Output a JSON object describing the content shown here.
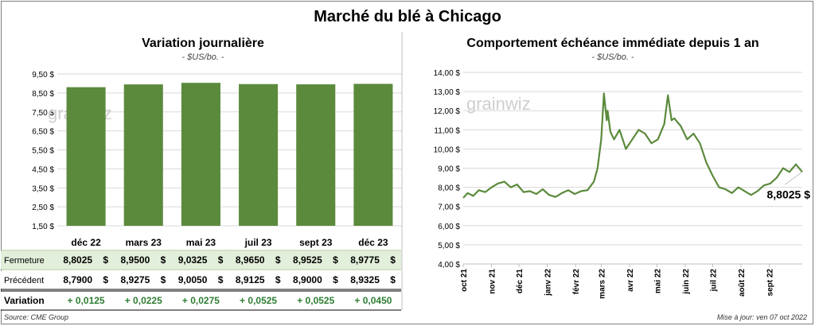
{
  "header": {
    "title": "Marché du blé à Chicago"
  },
  "left_panel": {
    "title": "Variation  journalière",
    "subtitle": "- $US/bo. -",
    "watermark": "grainwiz"
  },
  "right_panel": {
    "title": "Comportement  échéance immédiate depuis 1 an",
    "subtitle": "- $US/bo. -",
    "watermark": "grainwiz",
    "last_value_label": "8,8025 $"
  },
  "table": {
    "rows": [
      {
        "label": "Fermeture",
        "values": [
          "8,8025",
          "8,9500",
          "9,0325",
          "8,9650",
          "8,9525",
          "8,9775"
        ],
        "unit": "$",
        "bg": "#e2efda"
      },
      {
        "label": "Précédent",
        "values": [
          "8,7900",
          "8,9275",
          "9,0050",
          "8,9125",
          "8,9000",
          "8,9325"
        ],
        "unit": "$",
        "bg": "#ffffff"
      },
      {
        "label": "Variation",
        "values": [
          "+ 0,0125",
          "+ 0,0225",
          "+ 0,0275",
          "+ 0,0525",
          "+ 0,0525",
          "+ 0,0450"
        ],
        "unit": "",
        "bg": "#ffffff",
        "color": "#2e7d32"
      }
    ]
  },
  "footer": {
    "source": "Source: CME Group",
    "updated": "Mise à jour: ven 07 oct 2022"
  },
  "colors": {
    "bar": "#5b8a3c",
    "line": "#5b8a3c",
    "variation": "#2e7d32",
    "grid": "#d9d9d9",
    "highlight_row": "#e2efda"
  },
  "chart_data": [
    {
      "type": "bar",
      "title": "Variation  journalière",
      "subtitle": "- $US/bo. -",
      "categories": [
        "déc 22",
        "mars 23",
        "mai 23",
        "juil 23",
        "sept 23",
        "déc 23"
      ],
      "values": [
        8.8025,
        8.95,
        9.0325,
        8.965,
        8.9525,
        8.9775
      ],
      "ylim": [
        1.5,
        9.5
      ],
      "yticks": [
        1.5,
        2.5,
        3.5,
        4.5,
        5.5,
        6.5,
        7.5,
        8.5,
        9.5
      ],
      "ytick_labels": [
        "1,50 $",
        "2,50 $",
        "3,50 $",
        "4,50 $",
        "5,50 $",
        "6,50 $",
        "7,50 $",
        "8,50 $",
        "9,50 $"
      ],
      "grid": true
    },
    {
      "type": "line",
      "title": "Comportement  échéance immédiate depuis 1 an",
      "subtitle": "- $US/bo. -",
      "ylim": [
        4.0,
        14.0
      ],
      "yticks": [
        4,
        5,
        6,
        7,
        8,
        9,
        10,
        11,
        12,
        13,
        14
      ],
      "ytick_labels": [
        "4,00 $",
        "5,00 $",
        "6,00 $",
        "7,00 $",
        "8,00 $",
        "9,00 $",
        "10,00 $",
        "11,00 $",
        "12,00 $",
        "13,00 $",
        "14,00 $"
      ],
      "xlim": [
        "2021-10-01",
        "2022-10-07"
      ],
      "xtick_labels": [
        "oct 21",
        "nov 21",
        "déc 21",
        "janv 22",
        "févr 22",
        "mars 22",
        "avr 22",
        "mai 22",
        "juin 22",
        "juil 22",
        "août 22",
        "sept 22"
      ],
      "xticks": [
        "2021-10-01",
        "2021-11-01",
        "2021-12-01",
        "2022-01-01",
        "2022-02-01",
        "2022-03-01",
        "2022-04-01",
        "2022-05-01",
        "2022-06-01",
        "2022-07-01",
        "2022-08-01",
        "2022-09-01"
      ],
      "grid": true,
      "series": [
        {
          "x": [
            "2021-10-01",
            "2021-10-06",
            "2021-10-12",
            "2021-10-18",
            "2021-10-25",
            "2021-11-01",
            "2021-11-08",
            "2021-11-15",
            "2021-11-22",
            "2021-11-29",
            "2021-12-06",
            "2021-12-13",
            "2021-12-20",
            "2021-12-27",
            "2022-01-03",
            "2022-01-10",
            "2022-01-17",
            "2022-01-24",
            "2022-01-31",
            "2022-02-07",
            "2022-02-14",
            "2022-02-21",
            "2022-02-25",
            "2022-03-01",
            "2022-03-04",
            "2022-03-07",
            "2022-03-08",
            "2022-03-11",
            "2022-03-15",
            "2022-03-21",
            "2022-03-28",
            "2022-04-04",
            "2022-04-11",
            "2022-04-18",
            "2022-04-25",
            "2022-05-02",
            "2022-05-09",
            "2022-05-13",
            "2022-05-17",
            "2022-05-20",
            "2022-05-27",
            "2022-06-03",
            "2022-06-10",
            "2022-06-17",
            "2022-06-24",
            "2022-07-01",
            "2022-07-08",
            "2022-07-15",
            "2022-07-22",
            "2022-07-29",
            "2022-08-05",
            "2022-08-12",
            "2022-08-19",
            "2022-08-26",
            "2022-09-02",
            "2022-09-09",
            "2022-09-16",
            "2022-09-23",
            "2022-09-30",
            "2022-10-07"
          ],
          "y": [
            7.45,
            7.7,
            7.55,
            7.85,
            7.75,
            8.0,
            8.2,
            8.3,
            8.0,
            8.15,
            7.75,
            7.8,
            7.65,
            7.9,
            7.6,
            7.5,
            7.7,
            7.85,
            7.65,
            7.8,
            7.85,
            8.3,
            9.0,
            10.5,
            12.9,
            11.5,
            12.0,
            10.9,
            10.5,
            11.0,
            10.0,
            10.5,
            11.0,
            10.8,
            10.3,
            10.5,
            11.3,
            12.8,
            11.5,
            11.6,
            11.2,
            10.5,
            10.8,
            10.3,
            9.3,
            8.6,
            8.0,
            7.9,
            7.7,
            8.0,
            7.8,
            7.6,
            7.8,
            8.1,
            8.2,
            8.5,
            9.0,
            8.8,
            9.2,
            8.8025
          ]
        }
      ]
    }
  ]
}
